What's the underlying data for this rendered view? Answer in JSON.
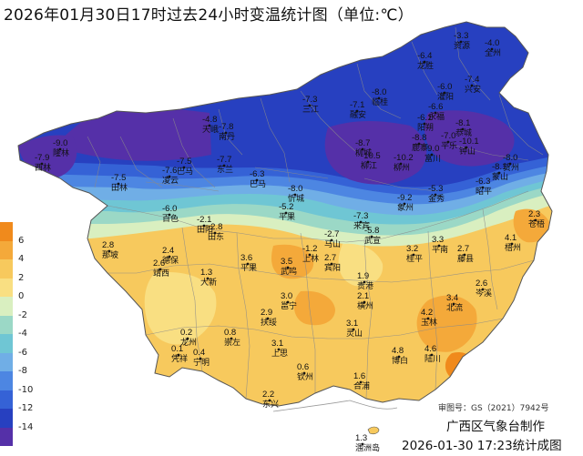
{
  "title": "2026年01月30日17时过去24小时变温统计图（单位:℃）",
  "legend": {
    "colors": [
      "#f08a1c",
      "#f4a93a",
      "#f7c95d",
      "#f9df82",
      "#d9efc0",
      "#9bd8c6",
      "#6fc6d4",
      "#70aee6",
      "#4d86e2",
      "#3562d6",
      "#2740c0",
      "#5530a8"
    ],
    "labels": [
      "6",
      "4",
      "2",
      "0",
      "-2",
      "-4",
      "-6",
      "-8",
      "-10",
      "-12",
      "-14"
    ]
  },
  "stations": [
    {
      "value": "-3.3",
      "name": "资源"
    },
    {
      "value": "-4.0",
      "name": "全州"
    },
    {
      "value": "-6.4",
      "name": "龙胜"
    },
    {
      "value": "-7.4",
      "name": "兴安"
    },
    {
      "value": "-6.0",
      "name": "灌阳"
    },
    {
      "value": "-8.0",
      "name": "临桂"
    },
    {
      "value": "-7.3",
      "name": "三江"
    },
    {
      "value": "-7.1",
      "name": "融安"
    },
    {
      "value": "-6.6",
      "name": "永福"
    },
    {
      "value": "-6.1",
      "name": "阳朔"
    },
    {
      "value": "-8.1",
      "name": "恭城"
    },
    {
      "value": "-7.0",
      "name": "平乐"
    },
    {
      "value": "-10.1",
      "name": "钟山"
    },
    {
      "value": "-9.0",
      "name": "富川"
    },
    {
      "value": "-8.0",
      "name": "贺州"
    },
    {
      "value": "-4.8",
      "name": "天峨"
    },
    {
      "value": "-7.8",
      "name": "南丹"
    },
    {
      "value": "-7.7",
      "name": "东兰"
    },
    {
      "value": "-7.5",
      "name": "巴马"
    },
    {
      "value": "-9.0",
      "name": "隆林"
    },
    {
      "value": "-7.9",
      "name": "西林"
    },
    {
      "value": "-7.5",
      "name": "田林"
    },
    {
      "value": "-7.6",
      "name": "凌云"
    },
    {
      "value": "-6.0",
      "name": "百色"
    },
    {
      "value": "-2.1",
      "name": "田阳"
    },
    {
      "value": "-2.8",
      "name": "田东"
    },
    {
      "value": "-5.2",
      "name": "平果"
    },
    {
      "value": "-6.3",
      "name": "巴马"
    },
    {
      "value": "-8.0",
      "name": "忻城"
    },
    {
      "value": "-8.7",
      "name": "柳城"
    },
    {
      "value": "-10.5",
      "name": "柳江"
    },
    {
      "value": "-10.2",
      "name": "柳州"
    },
    {
      "value": "-8.8",
      "name": "鹿寨"
    },
    {
      "value": "-9.2",
      "name": "象州"
    },
    {
      "value": "-7.3",
      "name": "来宾"
    },
    {
      "value": "-5.8",
      "name": "武宣"
    },
    {
      "value": "-5.3",
      "name": "金秀"
    },
    {
      "value": "-8.1",
      "name": "蒙山"
    },
    {
      "value": "-6.3",
      "name": "昭平"
    },
    {
      "value": "-1.2",
      "name": "上林"
    },
    {
      "value": "-2.7",
      "name": "马山"
    },
    {
      "value": "2.8",
      "name": "那坡"
    },
    {
      "value": "2.4",
      "name": "德保"
    },
    {
      "value": "2.6",
      "name": "靖西"
    },
    {
      "value": "3.6",
      "name": "平果"
    },
    {
      "value": "3.5",
      "name": "武鸣"
    },
    {
      "value": "2.7",
      "name": "宾阳"
    },
    {
      "value": "3.2",
      "name": "桂平"
    },
    {
      "value": "3.3",
      "name": "平南"
    },
    {
      "value": "2.7",
      "name": "藤县"
    },
    {
      "value": "4.1",
      "name": "梧州"
    },
    {
      "value": "2.3",
      "name": "苍梧"
    },
    {
      "value": "1.9",
      "name": "贵港"
    },
    {
      "value": "2.6",
      "name": "岑溪"
    },
    {
      "value": "1.3",
      "name": "大新"
    },
    {
      "value": "3.0",
      "name": "邕宁"
    },
    {
      "value": "2.1",
      "name": "横州"
    },
    {
      "value": "4.2",
      "name": "玉林"
    },
    {
      "value": "3.4",
      "name": "北流"
    },
    {
      "value": "0.2",
      "name": "龙州"
    },
    {
      "value": "0.8",
      "name": "崇左"
    },
    {
      "value": "2.9",
      "name": "扶绥"
    },
    {
      "value": "3.1",
      "name": "灵山"
    },
    {
      "value": "4.8",
      "name": "博白"
    },
    {
      "value": "4.6",
      "name": "陆川"
    },
    {
      "value": "0.1",
      "name": "凭祥"
    },
    {
      "value": "0.4",
      "name": "宁明"
    },
    {
      "value": "3.1",
      "name": "上思"
    },
    {
      "value": "0.6",
      "name": "钦州"
    },
    {
      "value": "1.6",
      "name": "合浦"
    },
    {
      "value": "2.2",
      "name": "东兴"
    },
    {
      "value": "1.3",
      "name": "涠洲岛"
    }
  ],
  "approval": "审图号：GS（2021）7942号",
  "maker": "广西区气象台制作",
  "stamp": "2026-01-30 17:23统计成图"
}
